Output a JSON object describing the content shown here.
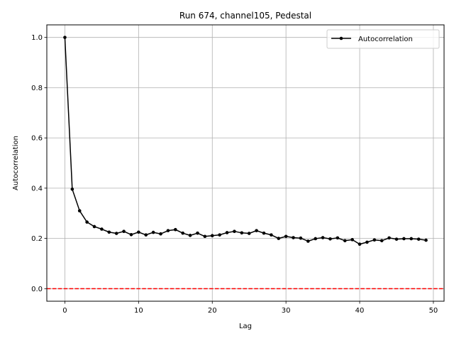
{
  "chart_data": {
    "type": "line",
    "title": "Run 674, channel105, Pedestal",
    "xlabel": "Lag",
    "ylabel": "Autocorrelation",
    "xlim": [
      -2.45,
      51.45
    ],
    "ylim": [
      -0.05,
      1.05
    ],
    "xticks": [
      0,
      10,
      20,
      30,
      40,
      50
    ],
    "yticks": [
      0.0,
      0.2,
      0.4,
      0.6,
      0.8,
      1.0
    ],
    "grid": true,
    "legend_position": "top-right",
    "series": [
      {
        "name": "Autocorrelation",
        "color": "#000000",
        "marker": "circle",
        "x": [
          0,
          1,
          2,
          3,
          4,
          5,
          6,
          7,
          8,
          9,
          10,
          11,
          12,
          13,
          14,
          15,
          16,
          17,
          18,
          19,
          20,
          21,
          22,
          23,
          24,
          25,
          26,
          27,
          28,
          29,
          30,
          31,
          32,
          33,
          34,
          35,
          36,
          37,
          38,
          39,
          40,
          41,
          42,
          43,
          44,
          45,
          46,
          47,
          48,
          49
        ],
        "values": [
          1.0,
          0.396,
          0.31,
          0.265,
          0.247,
          0.237,
          0.225,
          0.22,
          0.228,
          0.215,
          0.225,
          0.214,
          0.224,
          0.218,
          0.231,
          0.235,
          0.221,
          0.212,
          0.221,
          0.208,
          0.211,
          0.214,
          0.223,
          0.228,
          0.222,
          0.22,
          0.231,
          0.221,
          0.214,
          0.2,
          0.208,
          0.203,
          0.201,
          0.189,
          0.199,
          0.203,
          0.198,
          0.202,
          0.191,
          0.195,
          0.177,
          0.185,
          0.194,
          0.191,
          0.202,
          0.197,
          0.199,
          0.199,
          0.197,
          0.193
        ]
      }
    ],
    "reference_lines": [
      {
        "orientation": "horizontal",
        "y": 0.0,
        "color": "#ff0000",
        "style": "dashed"
      }
    ]
  }
}
